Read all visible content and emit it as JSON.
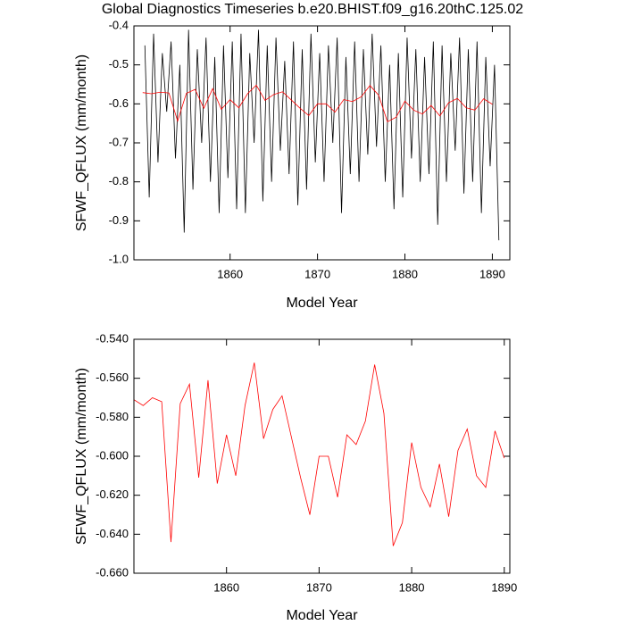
{
  "chart_data": [
    {
      "type": "line",
      "title": "Global Diagnostics Timeseries b.e20.BHIST.f09_g16.20thC.125.02",
      "x_label": "Model Year",
      "y_label": "SFWF_QFLUX (mm/month)",
      "xlim": [
        1849,
        1892
      ],
      "xticks": [
        1860,
        1870,
        1880,
        1890
      ],
      "ylim": [
        -1.0,
        -0.4
      ],
      "yticks": [
        {
          "value": -1.0,
          "label": "-1.0"
        },
        -0.9,
        -0.8,
        -0.7,
        -0.6,
        -0.5,
        -0.4
      ],
      "series": [
        {
          "color": "#000000",
          "x": [
            1850.25,
            1850.75,
            1851.25,
            1851.75,
            1852.25,
            1852.75,
            1853.25,
            1853.75,
            1854.25,
            1854.75,
            1855.25,
            1855.75,
            1856.25,
            1856.75,
            1857.25,
            1857.75,
            1858.25,
            1858.75,
            1859.25,
            1859.75,
            1860.25,
            1860.75,
            1861.25,
            1861.75,
            1862.25,
            1862.75,
            1863.25,
            1863.75,
            1864.25,
            1864.75,
            1865.25,
            1865.75,
            1866.25,
            1866.75,
            1867.25,
            1867.75,
            1868.25,
            1868.75,
            1869.25,
            1869.75,
            1870.25,
            1870.75,
            1871.25,
            1871.75,
            1872.25,
            1872.75,
            1873.25,
            1873.75,
            1874.25,
            1874.75,
            1875.25,
            1875.75,
            1876.25,
            1876.75,
            1877.25,
            1877.75,
            1878.25,
            1878.75,
            1879.25,
            1879.75,
            1880.25,
            1880.75,
            1881.25,
            1881.75,
            1882.25,
            1882.75,
            1883.25,
            1883.75,
            1884.25,
            1884.75,
            1885.25,
            1885.75,
            1886.25,
            1886.75,
            1887.25,
            1887.75,
            1888.25,
            1888.75,
            1889.25,
            1889.75,
            1890.25,
            1890.75
          ],
          "values": [
            -0.45,
            -0.84,
            -0.42,
            -0.75,
            -0.47,
            -0.62,
            -0.44,
            -0.74,
            -0.5,
            -0.93,
            -0.41,
            -0.82,
            -0.46,
            -0.7,
            -0.43,
            -0.8,
            -0.48,
            -0.88,
            -0.45,
            -0.79,
            -0.44,
            -0.87,
            -0.42,
            -0.88,
            -0.47,
            -0.7,
            -0.41,
            -0.85,
            -0.45,
            -0.8,
            -0.43,
            -0.72,
            -0.49,
            -0.78,
            -0.44,
            -0.86,
            -0.46,
            -0.82,
            -0.42,
            -0.75,
            -0.47,
            -0.8,
            -0.45,
            -0.7,
            -0.43,
            -0.88,
            -0.48,
            -0.78,
            -0.44,
            -0.8,
            -0.46,
            -0.73,
            -0.42,
            -0.71,
            -0.45,
            -0.8,
            -0.5,
            -0.87,
            -0.47,
            -0.84,
            -0.43,
            -0.74,
            -0.46,
            -0.8,
            -0.48,
            -0.78,
            -0.44,
            -0.91,
            -0.45,
            -0.8,
            -0.47,
            -0.72,
            -0.43,
            -0.83,
            -0.46,
            -0.8,
            -0.44,
            -0.88,
            -0.48,
            -0.76,
            -0.5,
            -0.95
          ]
        },
        {
          "color": "#ff0000",
          "x": [
            1850,
            1851,
            1852,
            1853,
            1854,
            1855,
            1856,
            1857,
            1858,
            1859,
            1860,
            1861,
            1862,
            1863,
            1864,
            1865,
            1866,
            1867,
            1868,
            1869,
            1870,
            1871,
            1872,
            1873,
            1874,
            1875,
            1876,
            1877,
            1878,
            1879,
            1880,
            1881,
            1882,
            1883,
            1884,
            1885,
            1886,
            1887,
            1888,
            1889,
            1890
          ],
          "values": [
            -0.571,
            -0.574,
            -0.57,
            -0.572,
            -0.644,
            -0.573,
            -0.563,
            -0.611,
            -0.561,
            -0.614,
            -0.589,
            -0.61,
            -0.574,
            -0.552,
            -0.591,
            -0.576,
            -0.569,
            -0.59,
            -0.611,
            -0.63,
            -0.6,
            -0.6,
            -0.621,
            -0.589,
            -0.594,
            -0.582,
            -0.553,
            -0.578,
            -0.646,
            -0.634,
            -0.593,
            -0.616,
            -0.626,
            -0.604,
            -0.631,
            -0.597,
            -0.586,
            -0.61,
            -0.616,
            -0.587,
            -0.601
          ]
        }
      ]
    },
    {
      "type": "line",
      "x_label": "Model Year",
      "y_label": "SFWF_QFLUX (mm/month)",
      "xlim": [
        1850,
        1890.6
      ],
      "xticks": [
        1860,
        1870,
        1880,
        1890
      ],
      "ylim": [
        -0.66,
        -0.54
      ],
      "yticks": [
        {
          "value": -0.66,
          "label": "-0.660"
        },
        {
          "value": -0.64,
          "label": "-0.640"
        },
        {
          "value": -0.62,
          "label": "-0.620"
        },
        {
          "value": -0.6,
          "label": "-0.600"
        },
        {
          "value": -0.58,
          "label": "-0.580"
        },
        {
          "value": -0.56,
          "label": "-0.560"
        },
        {
          "value": -0.54,
          "label": "-0.540"
        }
      ],
      "series": [
        {
          "color": "#ff0000",
          "x": [
            1850,
            1851,
            1852,
            1853,
            1854,
            1855,
            1856,
            1857,
            1858,
            1859,
            1860,
            1861,
            1862,
            1863,
            1864,
            1865,
            1866,
            1867,
            1868,
            1869,
            1870,
            1871,
            1872,
            1873,
            1874,
            1875,
            1876,
            1877,
            1878,
            1879,
            1880,
            1881,
            1882,
            1883,
            1884,
            1885,
            1886,
            1887,
            1888,
            1889,
            1890
          ],
          "values": [
            -0.571,
            -0.574,
            -0.57,
            -0.572,
            -0.644,
            -0.573,
            -0.563,
            -0.611,
            -0.561,
            -0.614,
            -0.589,
            -0.61,
            -0.574,
            -0.552,
            -0.591,
            -0.576,
            -0.569,
            -0.59,
            -0.611,
            -0.63,
            -0.6,
            -0.6,
            -0.621,
            -0.589,
            -0.594,
            -0.582,
            -0.553,
            -0.578,
            -0.646,
            -0.634,
            -0.593,
            -0.616,
            -0.626,
            -0.604,
            -0.631,
            -0.597,
            -0.586,
            -0.61,
            -0.616,
            -0.587,
            -0.601
          ]
        }
      ]
    }
  ]
}
